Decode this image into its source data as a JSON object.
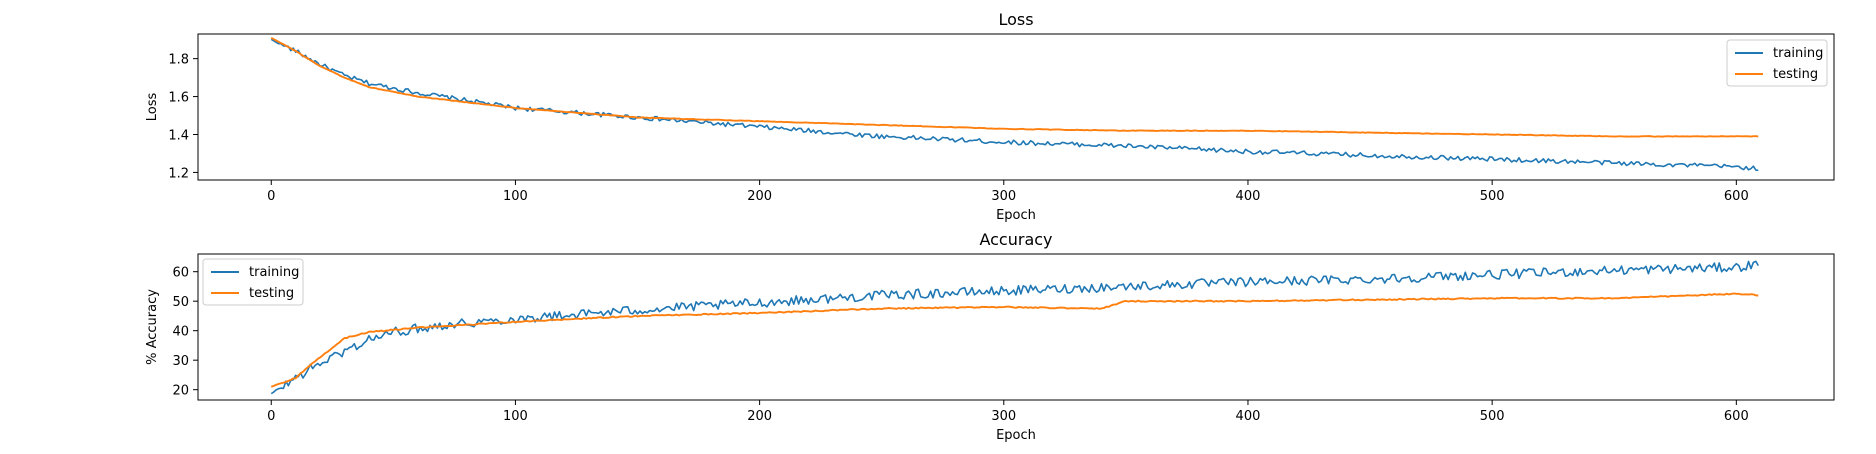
{
  "colors": {
    "training": "#1f77b4",
    "testing": "#ff7f0e"
  },
  "chart_data": [
    {
      "type": "line",
      "title": "Loss",
      "xlabel": "Epoch",
      "ylabel": "Loss",
      "xlim": [
        -30,
        640
      ],
      "ylim": [
        1.16,
        1.93
      ],
      "xticks": [
        0,
        100,
        200,
        300,
        400,
        500,
        600
      ],
      "yticks": [
        1.2,
        1.4,
        1.6,
        1.8
      ],
      "ytick_labels": [
        "1.2",
        "1.4",
        "1.6",
        "1.8"
      ],
      "legend": "top-right",
      "x_end": 609,
      "noise_amplitude": 0.012,
      "series": [
        {
          "name": "training",
          "x": [
            0,
            10,
            20,
            30,
            40,
            60,
            80,
            100,
            130,
            150,
            200,
            250,
            300,
            350,
            400,
            450,
            500,
            550,
            600,
            609
          ],
          "values": [
            1.9,
            1.84,
            1.77,
            1.71,
            1.67,
            1.62,
            1.58,
            1.54,
            1.51,
            1.49,
            1.44,
            1.39,
            1.36,
            1.34,
            1.31,
            1.29,
            1.27,
            1.25,
            1.23,
            1.22
          ]
        },
        {
          "name": "testing",
          "x": [
            0,
            10,
            20,
            30,
            40,
            60,
            80,
            100,
            150,
            200,
            250,
            300,
            350,
            400,
            450,
            500,
            550,
            600,
            609
          ],
          "values": [
            1.91,
            1.84,
            1.76,
            1.7,
            1.65,
            1.6,
            1.57,
            1.54,
            1.49,
            1.47,
            1.45,
            1.43,
            1.42,
            1.42,
            1.41,
            1.4,
            1.39,
            1.39,
            1.39
          ]
        }
      ]
    },
    {
      "type": "line",
      "title": "Accuracy",
      "xlabel": "Epoch",
      "ylabel": "% Accuracy",
      "xlim": [
        -30,
        640
      ],
      "ylim": [
        16.5,
        66
      ],
      "xticks": [
        0,
        100,
        200,
        300,
        400,
        500,
        600
      ],
      "yticks": [
        20,
        30,
        40,
        50,
        60
      ],
      "ytick_labels": [
        "20",
        "30",
        "40",
        "50",
        "60"
      ],
      "legend": "top-left",
      "x_end": 609,
      "noise_amplitude": 1.6,
      "series": [
        {
          "name": "training",
          "x": [
            0,
            10,
            20,
            30,
            40,
            50,
            70,
            100,
            150,
            200,
            250,
            300,
            350,
            400,
            450,
            500,
            550,
            600,
            609
          ],
          "values": [
            18.5,
            24,
            29,
            33,
            37,
            39.5,
            42,
            44,
            47,
            49.5,
            52,
            53.5,
            55,
            56.5,
            57.5,
            59,
            60.5,
            61.5,
            62.5
          ]
        },
        {
          "name": "testing",
          "x": [
            0,
            10,
            20,
            30,
            40,
            60,
            80,
            100,
            150,
            200,
            250,
            300,
            340,
            350,
            400,
            450,
            500,
            550,
            600,
            609
          ],
          "values": [
            21,
            24,
            31,
            37.5,
            39.5,
            41,
            42,
            43,
            45,
            46,
            47.5,
            48,
            47.5,
            50,
            50,
            50.5,
            51,
            51,
            52.5,
            52
          ]
        }
      ]
    }
  ]
}
